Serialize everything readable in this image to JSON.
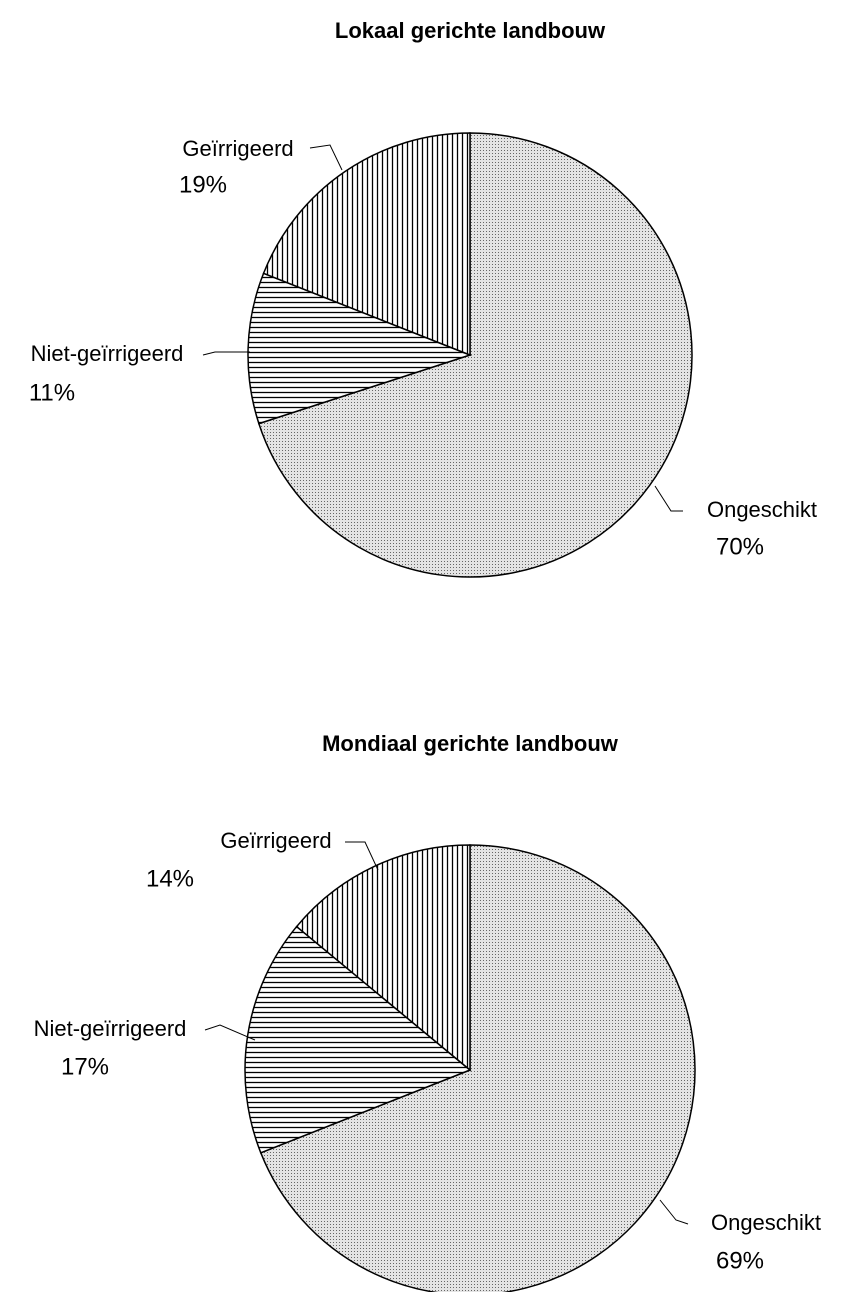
{
  "chart_data": [
    {
      "type": "pie",
      "title": "Lokaal gerichte landbouw",
      "categories": [
        "Ongeschikt",
        "Niet-geïrrigeerd",
        "Geïrrigeerd"
      ],
      "values": [
        70,
        11,
        19
      ],
      "value_labels": [
        "70%",
        "11%",
        "19%"
      ]
    },
    {
      "type": "pie",
      "title": "Mondiaal gerichte landbouw",
      "categories": [
        "Ongeschikt",
        "Niet-geïrrigeerd",
        "Geïrrigeerd"
      ],
      "values": [
        69,
        17,
        14
      ],
      "value_labels": [
        "69%",
        "17%",
        "14%"
      ]
    }
  ]
}
